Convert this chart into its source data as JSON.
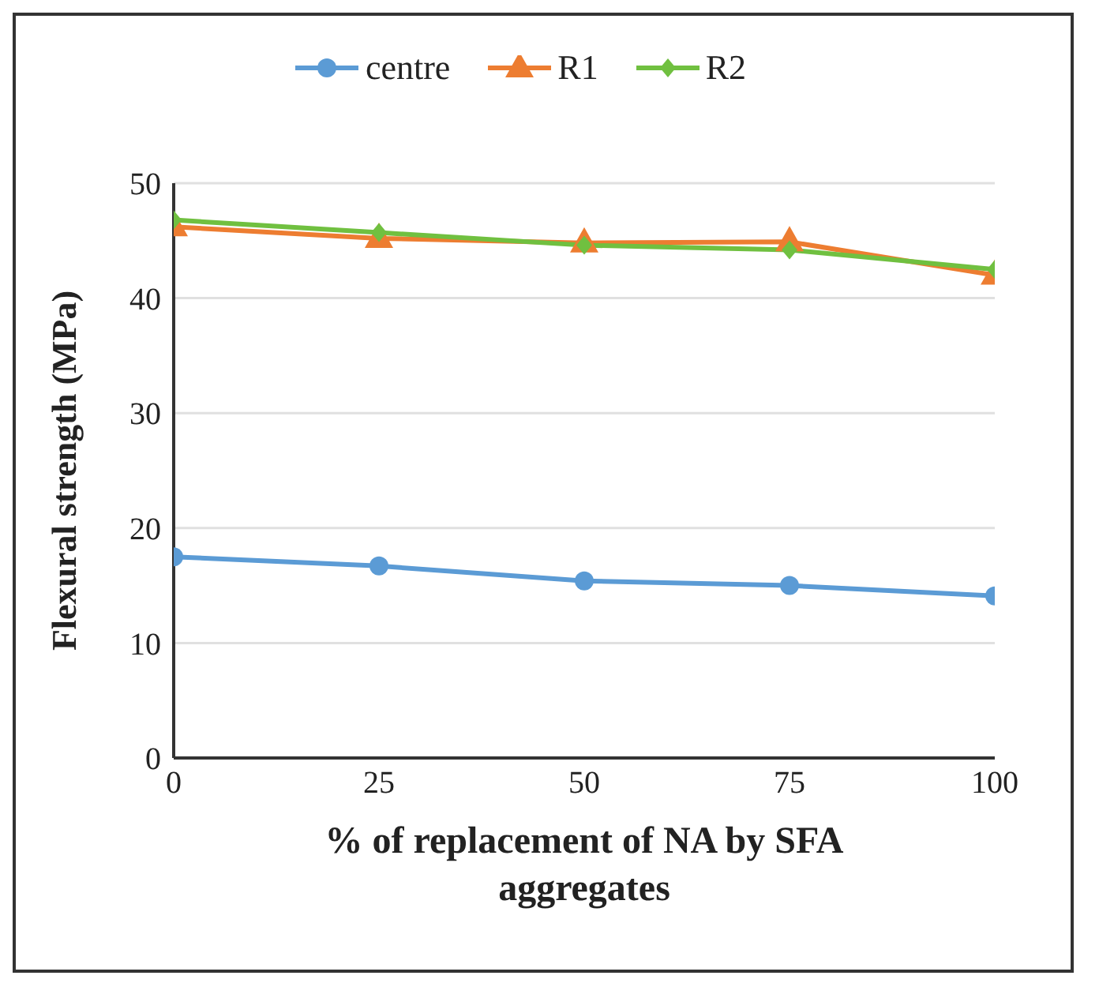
{
  "chart_data": {
    "type": "line",
    "xlabel": "% of replacement of NA by SFA aggregates",
    "ylabel": "Flexural strength (MPa)",
    "x": [
      0,
      25,
      50,
      75,
      100
    ],
    "xlim": [
      0,
      100
    ],
    "xticks": [
      0,
      25,
      50,
      75,
      100
    ],
    "ylim": [
      0,
      50
    ],
    "yticks": [
      0,
      10,
      20,
      30,
      40,
      50
    ],
    "grid": "y",
    "legend": "top",
    "series": [
      {
        "name": "centre",
        "color": "#5b9bd5",
        "marker": "circle",
        "values": [
          17.5,
          16.7,
          15.4,
          15.0,
          14.1
        ]
      },
      {
        "name": "R1",
        "color": "#ed7d31",
        "marker": "triangle",
        "values": [
          46.2,
          45.2,
          44.8,
          44.9,
          42.0
        ]
      },
      {
        "name": "R2",
        "color": "#70c040",
        "marker": "diamond",
        "values": [
          46.8,
          45.7,
          44.6,
          44.2,
          42.5
        ]
      }
    ]
  }
}
